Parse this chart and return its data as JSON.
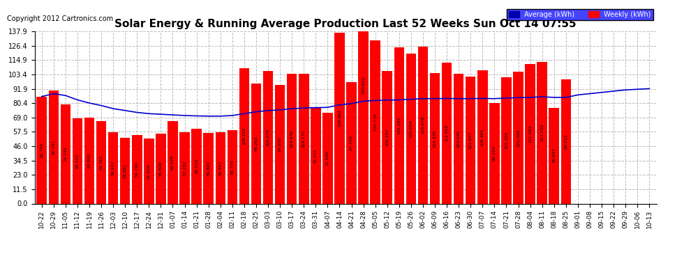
{
  "title": "Solar Energy & Running Average Production Last 52 Weeks Sun Oct 14 07:55",
  "copyright": "Copyright 2012 Cartronics.com",
  "ylabel_right": "",
  "bar_color": "#FF0000",
  "line_color": "#0000CC",
  "background_color": "#FFFFFF",
  "grid_color": "#AAAAAA",
  "ylim": [
    0,
    137.9
  ],
  "yticks": [
    0.0,
    11.5,
    23.0,
    34.5,
    46.0,
    57.5,
    69.0,
    80.4,
    91.9,
    103.4,
    114.9,
    126.4,
    137.9
  ],
  "categories": [
    "10-22",
    "10-29",
    "11-05",
    "11-12",
    "11-19",
    "11-26",
    "12-03",
    "12-10",
    "12-17",
    "12-24",
    "12-31",
    "01-07",
    "01-14",
    "01-21",
    "01-28",
    "02-04",
    "02-11",
    "02-18",
    "02-25",
    "03-03",
    "03-10",
    "03-17",
    "03-24",
    "03-31",
    "04-07",
    "04-14",
    "04-21",
    "04-28",
    "05-05",
    "05-12",
    "05-19",
    "05-26",
    "06-02",
    "06-09",
    "06-16",
    "06-23",
    "06-30",
    "07-07",
    "07-14",
    "07-21",
    "07-28",
    "08-04",
    "08-11",
    "08-18",
    "08-25",
    "09-01",
    "09-08",
    "09-15",
    "09-22",
    "09-29",
    "10-06",
    "10-13"
  ],
  "weekly_values": [
    85.7,
    90.781,
    79.145,
    68.285,
    68.86,
    65.761,
    56.937,
    52.581,
    54.796,
    51.958,
    55.826,
    66.078,
    57.282,
    60.022,
    56.802,
    56.867,
    58.776,
    108.105,
    96.262,
    106.078,
    94.935,
    104.046,
    104.175,
    76.355,
    72.64,
    136.802,
    97.349,
    190.022,
    130.776,
    106.282,
    125.095,
    120.034,
    125.678,
    104.336,
    112.65,
    104.045,
    101.607,
    106.465,
    80.234,
    101.209,
    105.498,
    111.984,
    113.55,
    76.847,
    99.212,
    0,
    0,
    0,
    0,
    0,
    0,
    0
  ],
  "average_values": [
    85.7,
    88.0,
    86.5,
    83.0,
    80.5,
    78.5,
    76.0,
    74.5,
    73.0,
    72.0,
    71.5,
    71.0,
    70.5,
    70.2,
    70.0,
    70.0,
    70.5,
    72.0,
    73.5,
    74.5,
    75.0,
    76.0,
    76.5,
    76.8,
    77.0,
    79.0,
    80.0,
    82.0,
    82.5,
    82.8,
    83.0,
    83.5,
    84.0,
    84.0,
    84.2,
    84.0,
    84.0,
    84.2,
    84.0,
    84.5,
    84.8,
    85.0,
    85.5,
    85.0,
    85.0,
    87.0,
    88.0,
    89.0,
    90.0,
    91.0,
    91.5,
    92.0
  ],
  "legend_avg_color": "#0000AA",
  "legend_weekly_color": "#FF0000",
  "legend_avg_label": "Average (kWh)",
  "legend_weekly_label": "Weekly (kWh)"
}
